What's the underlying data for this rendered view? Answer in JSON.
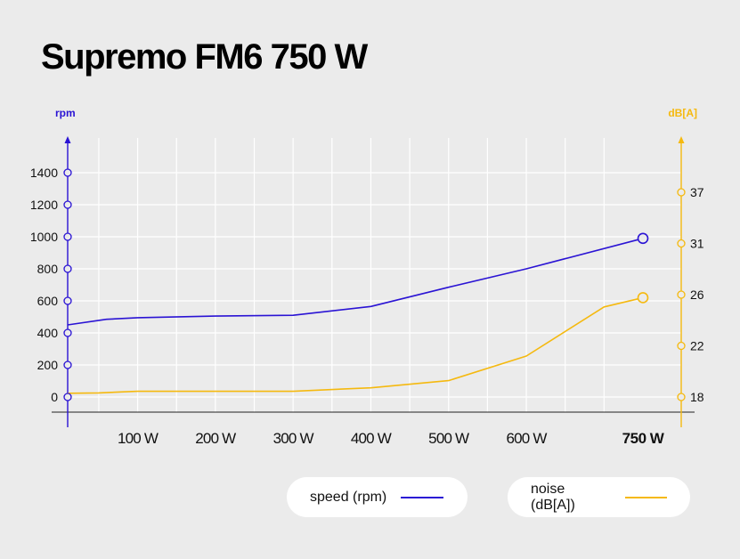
{
  "title": "Supremo FM6 750 W",
  "colors": {
    "speed": "#2a13d4",
    "noise": "#f5b90f",
    "grid": "#ffffff",
    "axis": "#222222"
  },
  "chart_data": {
    "type": "line",
    "x_ticks": [
      {
        "value": 100,
        "label": "100 W",
        "bold": false
      },
      {
        "value": 200,
        "label": "200 W",
        "bold": false
      },
      {
        "value": 300,
        "label": "300 W",
        "bold": false
      },
      {
        "value": 400,
        "label": "400 W",
        "bold": false
      },
      {
        "value": 500,
        "label": "500 W",
        "bold": false
      },
      {
        "value": 600,
        "label": "600 W",
        "bold": false
      },
      {
        "value": 750,
        "label": "750 W",
        "bold": true
      }
    ],
    "xlim": [
      10,
      750
    ],
    "left_axis": {
      "label": "rpm",
      "ticks": [
        0,
        200,
        400,
        600,
        800,
        1000,
        1200,
        1400
      ],
      "ylim": [
        0,
        1400
      ]
    },
    "right_axis": {
      "label": "dB[A]",
      "tick_labels": [
        "18",
        "22",
        "26",
        "31",
        "37"
      ],
      "tick_fracs": [
        0,
        0.25,
        0.5,
        0.75,
        1.0
      ]
    },
    "series": [
      {
        "name": "speed (rpm)",
        "axis": "left",
        "x": [
          10,
          60,
          100,
          200,
          300,
          400,
          500,
          600,
          750
        ],
        "y": [
          450,
          485,
          495,
          505,
          510,
          565,
          685,
          800,
          990
        ]
      },
      {
        "name": "noise (dB[A])",
        "axis": "right",
        "y_frac": [
          0.018,
          0.02,
          0.028,
          0.028,
          0.028,
          0.045,
          0.08,
          0.2,
          0.44,
          0.485
        ],
        "x": [
          10,
          50,
          100,
          200,
          300,
          400,
          500,
          600,
          700,
          750
        ]
      }
    ]
  }
}
